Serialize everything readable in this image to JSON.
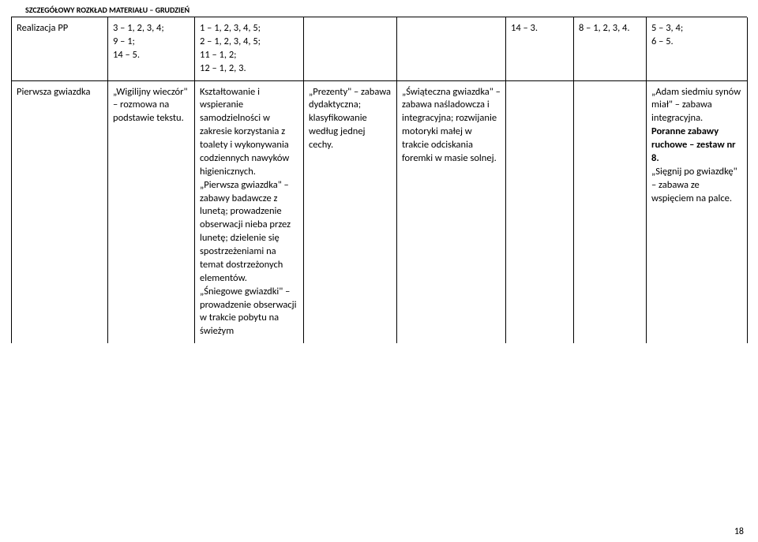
{
  "header": "SZCZEGÓŁOWY ROZKŁAD MATERIAŁU – GRUDZIEŃ",
  "page_number": "18",
  "rows": [
    {
      "cells": [
        "Realizacja PP",
        "3 – 1, 2, 3, 4;\n9 – 1;\n14 – 5.",
        "1 – 1, 2, 3, 4, 5;\n2 – 1, 2, 3, 4, 5;\n11 – 1, 2;\n12 – 1, 2, 3.",
        "",
        "",
        "14 – 3.",
        "8 – 1, 2, 3, 4.",
        "5 – 3, 4;\n6 – 5."
      ]
    },
    {
      "cells": [
        "Pierwsza gwiazdka",
        "„Wigilijny wieczór\" – rozmowa na podstawie tekstu.",
        "Kształtowanie i wspieranie samodzielności w zakresie korzystania z toalety i wykonywania codziennych nawyków higienicznych.\n„Pierwsza gwiazdka\" – zabawy badawcze z lunetą; prowadzenie obserwacji nieba przez lunetę; dzielenie się spostrzeżeniami na temat dostrzeżonych elementów.\n„Śniegowe gwiazdki\" – prowadzenie obserwacji w trakcie pobytu na świeżym",
        "„Prezenty\" – zabawa dydaktyczna; klasyfikowanie według jednej cechy.",
        "„Świąteczna gwiazdka\" – zabawa naśladowcza i integracyjna; rozwijanie motoryki małej w trakcie odciskania foremki w masie solnej.",
        "",
        "",
        {
          "segments": [
            {
              "t": "„Adam siedmiu synów miał\" – zabawa integracyjna.\n",
              "b": false
            },
            {
              "t": "Poranne zabawy ruchowe – zestaw nr 8.\n",
              "b": true
            },
            {
              "t": "„Sięgnij po gwiazdkę\" – zabawa ze wspięciem na palce.",
              "b": false
            }
          ]
        }
      ]
    }
  ]
}
